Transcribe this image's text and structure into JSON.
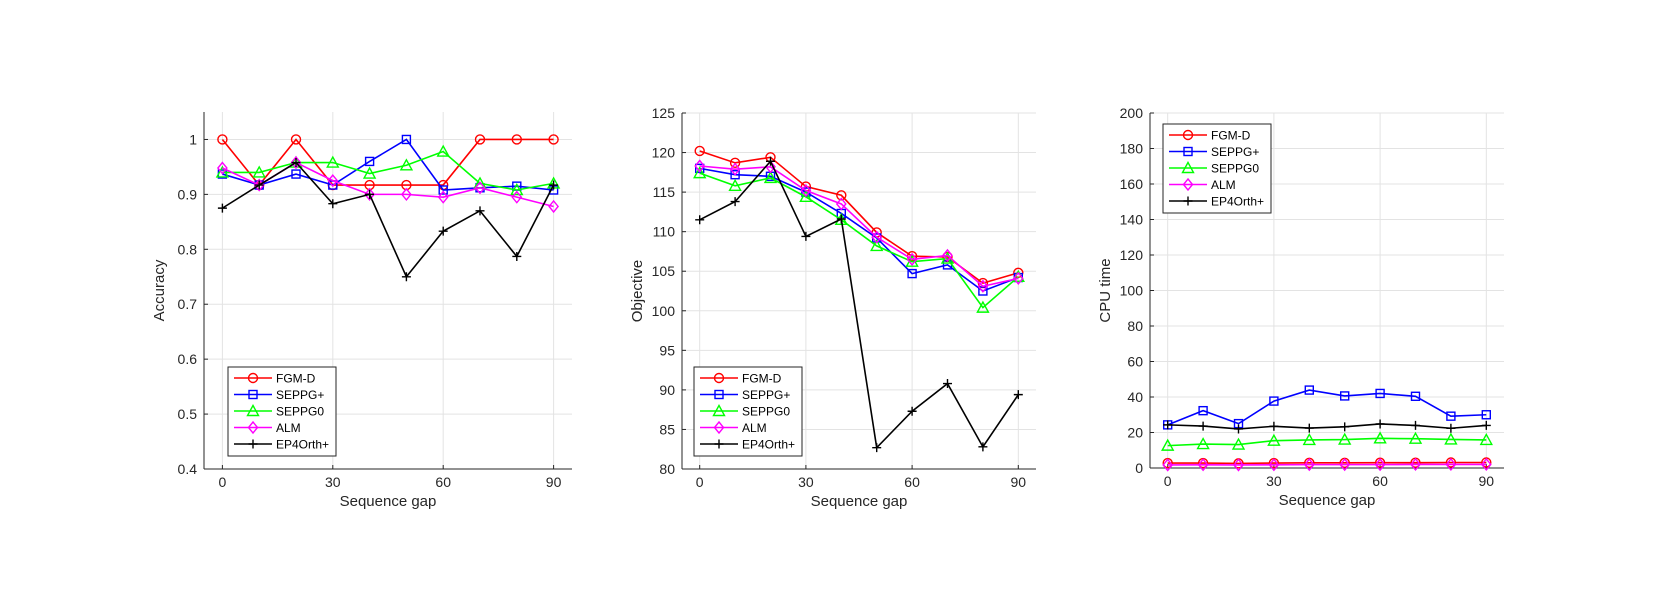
{
  "chart_data": [
    {
      "type": "line",
      "xlabel": "Sequence gap",
      "ylabel": "Accuracy",
      "x": [
        0,
        10,
        20,
        30,
        40,
        50,
        60,
        70,
        80,
        90
      ],
      "xlim": [
        -5,
        95
      ],
      "ylim": [
        0.4,
        1.05
      ],
      "xticks": [
        0,
        30,
        60,
        90
      ],
      "xtick_labels": [
        "0",
        "30",
        "60",
        "90"
      ],
      "yticks": [
        0.4,
        0.5,
        0.6,
        0.7,
        0.8,
        0.9,
        1.0
      ],
      "ytick_labels": [
        "0.4",
        "0.5",
        "0.6",
        "0.7",
        "0.8",
        "0.9",
        "1"
      ],
      "grid": true,
      "legend_position": "bottom-left",
      "series": [
        {
          "name": "FGM-D",
          "color": "#ff0000",
          "marker": "circle",
          "values": [
            1.0,
            0.917,
            1.0,
            0.917,
            0.917,
            0.917,
            0.917,
            1.0,
            1.0,
            1.0
          ]
        },
        {
          "name": "SEPPG+",
          "color": "#0000ff",
          "marker": "square",
          "values": [
            0.937,
            0.917,
            0.937,
            0.917,
            0.96,
            1.0,
            0.908,
            0.912,
            0.915,
            0.908
          ]
        },
        {
          "name": "SEPPG0",
          "color": "#00ff00",
          "marker": "triangle",
          "values": [
            0.94,
            0.94,
            0.958,
            0.958,
            0.938,
            0.953,
            0.978,
            0.92,
            0.908,
            0.92
          ]
        },
        {
          "name": "ALM",
          "color": "#ff00ff",
          "marker": "diamond",
          "values": [
            0.948,
            0.917,
            0.958,
            0.925,
            0.9,
            0.9,
            0.895,
            0.912,
            0.895,
            0.878
          ]
        },
        {
          "name": "EP4Orth+",
          "color": "#000000",
          "marker": "plus",
          "values": [
            0.875,
            0.917,
            0.958,
            0.883,
            0.9,
            0.75,
            0.833,
            0.87,
            0.787,
            0.917
          ]
        }
      ]
    },
    {
      "type": "line",
      "xlabel": "Sequence gap",
      "ylabel": "Objective",
      "x": [
        0,
        10,
        20,
        30,
        40,
        50,
        60,
        70,
        80,
        90
      ],
      "xlim": [
        -5,
        95
      ],
      "ylim": [
        80,
        125
      ],
      "xticks": [
        0,
        30,
        60,
        90
      ],
      "xtick_labels": [
        "0",
        "30",
        "60",
        "90"
      ],
      "yticks": [
        80,
        85,
        90,
        95,
        100,
        105,
        110,
        115,
        120,
        125
      ],
      "ytick_labels": [
        "80",
        "85",
        "90",
        "95",
        "100",
        "105",
        "110",
        "115",
        "120",
        "125"
      ],
      "grid": true,
      "legend_position": "bottom-left",
      "series": [
        {
          "name": "FGM-D",
          "color": "#ff0000",
          "marker": "circle",
          "values": [
            120.2,
            118.7,
            119.4,
            115.7,
            114.6,
            109.9,
            106.9,
            106.8,
            103.5,
            104.8
          ]
        },
        {
          "name": "SEPPG+",
          "color": "#0000ff",
          "marker": "square",
          "values": [
            118.0,
            117.2,
            117.0,
            115.0,
            112.3,
            109.2,
            104.7,
            105.8,
            102.5,
            104.2
          ]
        },
        {
          "name": "SEPPG0",
          "color": "#00ff00",
          "marker": "triangle",
          "values": [
            117.4,
            115.8,
            116.8,
            114.4,
            111.5,
            108.2,
            106.2,
            106.6,
            100.4,
            104.3
          ]
        },
        {
          "name": "ALM",
          "color": "#ff00ff",
          "marker": "diamond",
          "values": [
            118.3,
            117.9,
            118.2,
            115.2,
            113.5,
            109.3,
            106.5,
            107.0,
            103.1,
            104.1
          ]
        },
        {
          "name": "EP4Orth+",
          "color": "#000000",
          "marker": "plus",
          "values": [
            111.5,
            113.8,
            118.9,
            109.4,
            111.6,
            82.7,
            87.3,
            90.8,
            82.8,
            89.4
          ]
        }
      ]
    },
    {
      "type": "line",
      "xlabel": "Sequence gap",
      "ylabel": "CPU time",
      "x": [
        0,
        10,
        20,
        30,
        40,
        50,
        60,
        70,
        80,
        90
      ],
      "xlim": [
        -5,
        95
      ],
      "ylim": [
        0,
        200
      ],
      "xticks": [
        0,
        30,
        60,
        90
      ],
      "xtick_labels": [
        "0",
        "30",
        "60",
        "90"
      ],
      "yticks": [
        0,
        20,
        40,
        60,
        80,
        100,
        120,
        140,
        160,
        180,
        200
      ],
      "ytick_labels": [
        "0",
        "20",
        "40",
        "60",
        "80",
        "100",
        "120",
        "140",
        "160",
        "180",
        "200"
      ],
      "grid": true,
      "legend_position": "top-left",
      "series": [
        {
          "name": "FGM-D",
          "color": "#ff0000",
          "marker": "circle",
          "values": [
            2.8,
            2.8,
            2.6,
            2.8,
            2.9,
            2.9,
            3.0,
            3.0,
            3.1,
            3.1
          ]
        },
        {
          "name": "SEPPG+",
          "color": "#0000ff",
          "marker": "square",
          "values": [
            24.3,
            32.3,
            25.0,
            37.7,
            43.9,
            40.6,
            42.0,
            40.4,
            29.2,
            30.0
          ]
        },
        {
          "name": "SEPPG0",
          "color": "#00ff00",
          "marker": "triangle",
          "values": [
            12.6,
            13.5,
            13.2,
            15.4,
            15.8,
            16.0,
            16.7,
            16.5,
            16.1,
            15.8
          ]
        },
        {
          "name": "ALM",
          "color": "#ff00ff",
          "marker": "diamond",
          "values": [
            1.7,
            1.8,
            1.7,
            1.8,
            1.9,
            1.9,
            1.9,
            2.0,
            2.0,
            2.0
          ]
        },
        {
          "name": "EP4Orth+",
          "color": "#000000",
          "marker": "plus",
          "values": [
            24.3,
            23.6,
            22.0,
            23.5,
            22.5,
            23.2,
            24.8,
            24.0,
            22.4,
            24.0
          ]
        }
      ]
    }
  ]
}
